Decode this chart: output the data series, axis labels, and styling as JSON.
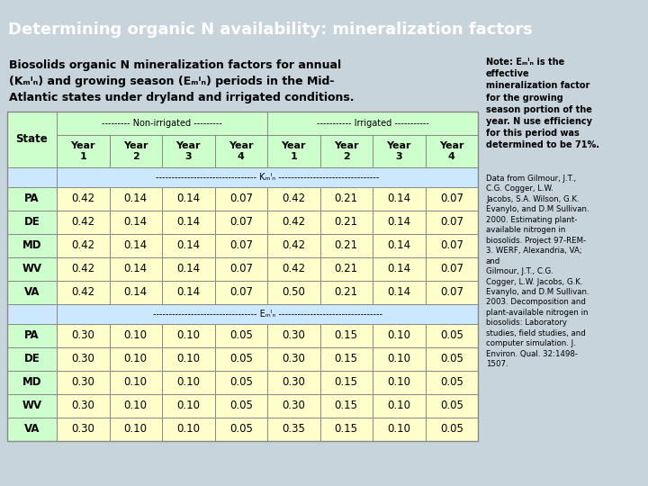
{
  "title": "Determining organic N availability: mineralization factors",
  "title_bg": "#10107a",
  "title_fg": "#ffffff",
  "bg_color": "#c8d4dc",
  "table_bg": "#ffffcc",
  "header_green": "#ccffcc",
  "section_blue": "#cce8ff",
  "subtitle_line1": "Biosolids organic N mineralization factors for annual",
  "subtitle_line2": "(K",
  "subtitle_line2b": "min",
  "subtitle_line2c": ") and growing season (E",
  "subtitle_line2d": "min",
  "subtitle_line2e": ") periods in the Mid-",
  "subtitle_line3": "Atlantic states under dryland and irrigated conditions.",
  "note_bold": "Note: Eₘᴵₙ is the\neffective\nmineralization factor\nfor the growing\nseason portion of the\nyear. N use efficiency\nfor this period was\ndetermined to be 71%.",
  "citation": "Data from Gilmour, J.T.,\nC.G. Cogger, L.W.\nJacobs, S.A. Wilson, G.K.\nEvanylo, and D.M Sullivan.\n2000. Estimating plant-\navailable nitrogen in\nbiosolids. Project 97-REM-\n3. WERF, Alexandria, VA;\nand\nGilmour, J.T., C.G.\nCogger, L.W. Jacobs, G.K.\nEvanylo, and D.M Sullivan.\n2003. Decomposition and\nplant-available nitrogen in\nbiosolids: Laboratory\nstudies, field studies, and\ncomputer simulation. J.\nEnviron. Qual. 32:1498-\n1507.",
  "non_irr_label": "--------- Non-irrigated ---------",
  "irr_label": "----------- Irrigated -----------",
  "kmin_label": "-------------------------------- Kₘᴵₙ --------------------------------",
  "emin_label": "--------------------------------- Eₘᴵₙ ---------------------------------",
  "kmin_data": [
    [
      "PA",
      "0.42",
      "0.14",
      "0.14",
      "0.07",
      "0.42",
      "0.21",
      "0.14",
      "0.07"
    ],
    [
      "DE",
      "0.42",
      "0.14",
      "0.14",
      "0.07",
      "0.42",
      "0.21",
      "0.14",
      "0.07"
    ],
    [
      "MD",
      "0.42",
      "0.14",
      "0.14",
      "0.07",
      "0.42",
      "0.21",
      "0.14",
      "0.07"
    ],
    [
      "WV",
      "0.42",
      "0.14",
      "0.14",
      "0.07",
      "0.42",
      "0.21",
      "0.14",
      "0.07"
    ],
    [
      "VA",
      "0.42",
      "0.14",
      "0.14",
      "0.07",
      "0.50",
      "0.21",
      "0.14",
      "0.07"
    ]
  ],
  "emin_data": [
    [
      "PA",
      "0.30",
      "0.10",
      "0.10",
      "0.05",
      "0.30",
      "0.15",
      "0.10",
      "0.05"
    ],
    [
      "DE",
      "0.30",
      "0.10",
      "0.10",
      "0.05",
      "0.30",
      "0.15",
      "0.10",
      "0.05"
    ],
    [
      "MD",
      "0.30",
      "0.10",
      "0.10",
      "0.05",
      "0.30",
      "0.15",
      "0.10",
      "0.05"
    ],
    [
      "WV",
      "0.30",
      "0.10",
      "0.10",
      "0.05",
      "0.30",
      "0.15",
      "0.10",
      "0.05"
    ],
    [
      "VA",
      "0.30",
      "0.10",
      "0.10",
      "0.05",
      "0.35",
      "0.15",
      "0.10",
      "0.05"
    ]
  ]
}
